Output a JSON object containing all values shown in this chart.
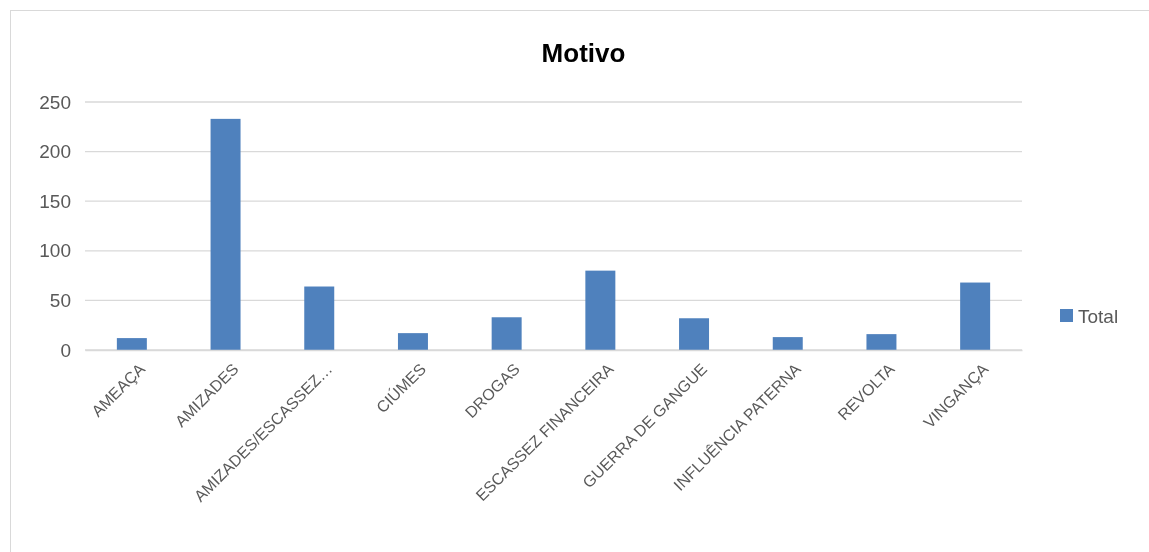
{
  "chart_data": {
    "type": "bar",
    "title": "Motivo",
    "categories": [
      "AMEAÇA",
      "AMIZADES",
      "AMIZADES/ESCASSEZ…",
      "CIÚMES",
      "DROGAS",
      "ESCASSEZ FINANCEIRA",
      "GUERRA DE GANGUE",
      "INFLUÊNCIA PATERNA",
      "REVOLTA",
      "VINGANÇA"
    ],
    "series": [
      {
        "name": "Total",
        "color": "#4f81bd",
        "values": [
          12,
          233,
          64,
          17,
          33,
          80,
          32,
          13,
          16,
          68
        ]
      }
    ],
    "ylim": [
      0,
      250
    ],
    "yticks": [
      0,
      50,
      100,
      150,
      200,
      250
    ],
    "grid": "y",
    "legend": "right"
  }
}
